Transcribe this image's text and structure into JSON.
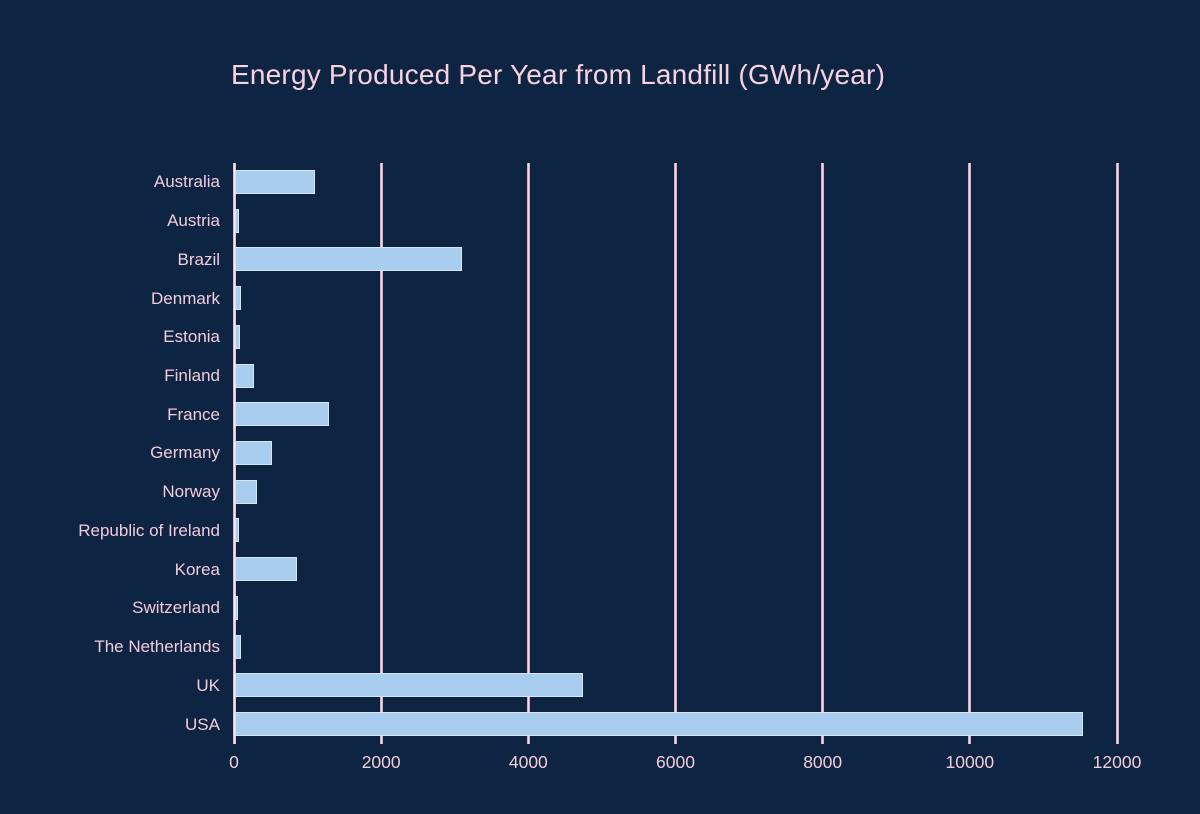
{
  "chart_data": {
    "type": "bar",
    "orientation": "horizontal",
    "title": "Energy Produced Per Year from Landfill (GWh/year)",
    "categories": [
      "Australia",
      "Austria",
      "Brazil",
      "Denmark",
      "Estonia",
      "Finland",
      "France",
      "Germany",
      "Norway",
      "Republic of Ireland",
      "Korea",
      "Switzerland",
      "The Netherlands",
      "UK",
      "USA"
    ],
    "values": [
      1060,
      30,
      3060,
      50,
      40,
      230,
      1250,
      470,
      270,
      30,
      820,
      20,
      60,
      4700,
      11500
    ],
    "unit": "GWh/year",
    "xlabel": "",
    "ylabel": "",
    "xlim": [
      0,
      12000
    ],
    "x_ticks": [
      0,
      2000,
      4000,
      6000,
      8000,
      10000,
      12000
    ],
    "grid": "vertical",
    "legend": "none",
    "colors": {
      "background": "#0d2443",
      "bar_fill": "#a9cdee",
      "bar_border": "#d8e5f4",
      "gridline": "#c98aa2",
      "text": "#f4cbda",
      "title": "#f8d2e0"
    }
  }
}
